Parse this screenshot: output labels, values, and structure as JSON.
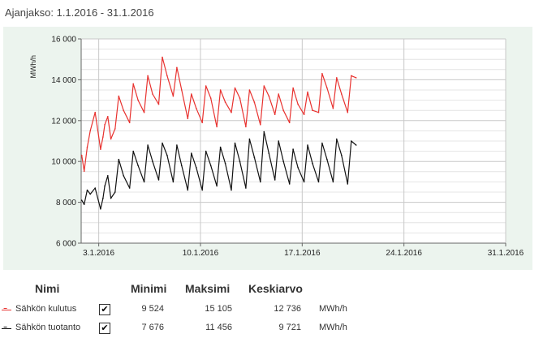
{
  "period_label": "Ajanjakso: 1.1.2016 - 31.1.2016",
  "chart_data": {
    "type": "line",
    "title": "",
    "xlabel": "",
    "ylabel": "MWh/h",
    "x_ticks": [
      "3.1.2016",
      "10.1.2016",
      "17.1.2016",
      "24.1.2016",
      "31.1.2016"
    ],
    "y_ticks": [
      "6 000",
      "8 000",
      "10 000",
      "12 000",
      "14 000",
      "16 000"
    ],
    "ylim": [
      6000,
      16000
    ],
    "xlim": [
      "1.1.2016 19:00",
      "31.1.2016 00:00"
    ],
    "grid": true,
    "series": [
      {
        "name": "Sähkön kulutus",
        "color": "#e8322f",
        "x": [
          "2016-01-01T20:00",
          "2016-01-02T00:00",
          "2016-01-02T05:00",
          "2016-01-02T10:00",
          "2016-01-02T18:00",
          "2016-01-03T03:00",
          "2016-01-03T07:00",
          "2016-01-03T10:00",
          "2016-01-03T15:00",
          "2016-01-03T20:00",
          "2016-01-04T03:00",
          "2016-01-04T09:00",
          "2016-01-04T17:00",
          "2016-01-05T03:00",
          "2016-01-05T09:00",
          "2016-01-05T17:00",
          "2016-01-06T03:00",
          "2016-01-06T09:00",
          "2016-01-06T17:00",
          "2016-01-07T03:00",
          "2016-01-07T09:00",
          "2016-01-07T17:00",
          "2016-01-08T03:00",
          "2016-01-08T09:00",
          "2016-01-08T17:00",
          "2016-01-09T03:00",
          "2016-01-09T09:00",
          "2016-01-09T17:00",
          "2016-01-10T03:00",
          "2016-01-10T09:00",
          "2016-01-10T17:00",
          "2016-01-11T03:00",
          "2016-01-11T09:00",
          "2016-01-11T17:00",
          "2016-01-12T03:00",
          "2016-01-12T09:00",
          "2016-01-12T17:00",
          "2016-01-13T03:00",
          "2016-01-13T09:00",
          "2016-01-13T17:00",
          "2016-01-14T03:00",
          "2016-01-14T09:00",
          "2016-01-14T17:00",
          "2016-01-15T03:00",
          "2016-01-15T09:00",
          "2016-01-15T17:00",
          "2016-01-16T03:00",
          "2016-01-16T09:00",
          "2016-01-16T17:00",
          "2016-01-17T03:00",
          "2016-01-17T09:00",
          "2016-01-17T17:00",
          "2016-01-18T03:00",
          "2016-01-18T09:00",
          "2016-01-18T17:00",
          "2016-01-19T03:00",
          "2016-01-19T09:00",
          "2016-01-19T17:00",
          "2016-01-20T03:00",
          "2016-01-20T09:00",
          "2016-01-20T17:00"
        ],
        "values": [
          10300,
          9524,
          10700,
          11500,
          12400,
          10600,
          11200,
          11800,
          12200,
          11100,
          11600,
          13200,
          12500,
          11900,
          13800,
          13000,
          12400,
          14200,
          13300,
          12800,
          15105,
          14200,
          13200,
          14600,
          13500,
          12100,
          13300,
          12600,
          11900,
          13700,
          13100,
          11700,
          13500,
          12900,
          12400,
          13600,
          13100,
          11700,
          13500,
          12900,
          11800,
          13700,
          13200,
          12300,
          13300,
          12500,
          11900,
          13600,
          12800,
          12300,
          13400,
          12500,
          12400,
          14300,
          13600,
          12600,
          14100,
          13300,
          12400,
          14200,
          14100
        ]
      },
      {
        "name": "Sähkön tuotanto",
        "color": "#111111",
        "x": [
          "2016-01-01T20:00",
          "2016-01-02T00:00",
          "2016-01-02T05:00",
          "2016-01-02T10:00",
          "2016-01-02T18:00",
          "2016-01-03T03:00",
          "2016-01-03T07:00",
          "2016-01-03T10:00",
          "2016-01-03T15:00",
          "2016-01-03T20:00",
          "2016-01-04T03:00",
          "2016-01-04T09:00",
          "2016-01-04T17:00",
          "2016-01-05T03:00",
          "2016-01-05T09:00",
          "2016-01-05T17:00",
          "2016-01-06T03:00",
          "2016-01-06T09:00",
          "2016-01-06T17:00",
          "2016-01-07T03:00",
          "2016-01-07T09:00",
          "2016-01-07T17:00",
          "2016-01-08T03:00",
          "2016-01-08T09:00",
          "2016-01-08T17:00",
          "2016-01-09T03:00",
          "2016-01-09T09:00",
          "2016-01-09T17:00",
          "2016-01-10T03:00",
          "2016-01-10T09:00",
          "2016-01-10T17:00",
          "2016-01-11T03:00",
          "2016-01-11T09:00",
          "2016-01-11T17:00",
          "2016-01-12T03:00",
          "2016-01-12T09:00",
          "2016-01-12T17:00",
          "2016-01-13T03:00",
          "2016-01-13T09:00",
          "2016-01-13T17:00",
          "2016-01-14T03:00",
          "2016-01-14T09:00",
          "2016-01-14T17:00",
          "2016-01-15T03:00",
          "2016-01-15T09:00",
          "2016-01-15T17:00",
          "2016-01-16T03:00",
          "2016-01-16T09:00",
          "2016-01-16T17:00",
          "2016-01-17T03:00",
          "2016-01-17T09:00",
          "2016-01-17T17:00",
          "2016-01-18T03:00",
          "2016-01-18T09:00",
          "2016-01-18T17:00",
          "2016-01-19T03:00",
          "2016-01-19T09:00",
          "2016-01-19T17:00",
          "2016-01-20T03:00",
          "2016-01-20T09:00",
          "2016-01-20T17:00"
        ],
        "values": [
          8100,
          7900,
          8600,
          8400,
          8700,
          7676,
          8200,
          8800,
          9300,
          8200,
          8500,
          10100,
          9300,
          8700,
          10500,
          9800,
          9000,
          10800,
          10000,
          9100,
          10900,
          10300,
          9000,
          10800,
          9800,
          8600,
          10400,
          9700,
          8600,
          10500,
          9800,
          8800,
          10700,
          9900,
          8600,
          10900,
          10000,
          8700,
          11100,
          10200,
          9000,
          11456,
          10400,
          9100,
          11000,
          10000,
          8900,
          10600,
          9700,
          9000,
          10800,
          9900,
          9000,
          10900,
          10100,
          9000,
          11100,
          10300,
          8900,
          11000,
          10800
        ]
      }
    ]
  },
  "legend": {
    "headers": {
      "name": "Nimi",
      "min": "Minimi",
      "max": "Maksimi",
      "avg": "Keskiarvo"
    },
    "rows": [
      {
        "name": "Sähkön kulutus",
        "color": "#e8322f",
        "checked": "✔",
        "min": "9 524",
        "max": "15 105",
        "avg": "12 736",
        "unit": "MWh/h"
      },
      {
        "name": "Sähkön tuotanto",
        "color": "#111111",
        "checked": "✔",
        "min": "7 676",
        "max": "11 456",
        "avg": "9 721",
        "unit": "MWh/h"
      }
    ]
  }
}
